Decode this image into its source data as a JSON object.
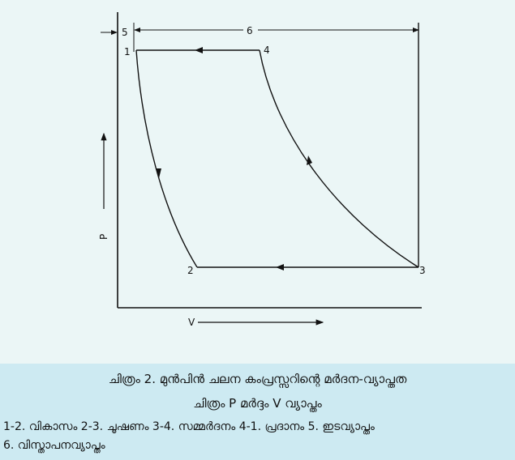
{
  "diagram": {
    "points": {
      "p1": "1",
      "p2": "2",
      "p3": "3",
      "p4": "4",
      "d5": "5",
      "d6": "6"
    },
    "axis": {
      "pressure": "P",
      "volume": "V"
    },
    "colors": {
      "line": "#111111",
      "diagram_bg": "#ebf6f6",
      "caption_bg": "#cdeaf2"
    }
  },
  "caption": {
    "title": "ചിത്രം 2.   മുൻപിൻ ചലന കംപ്രസ്സറിന്റെ മർദന-വ്യാപ്തത",
    "subtitle": "ചിത്രം P മർദ്ദം V വ്യാപ്തം",
    "legend_line1": "1-2. വികാസം 2-3. ചൂഷണം 3-4. സമ്മർദനം 4-1. പ്രദാനം 5. ഇടവ്യാപ്തം",
    "legend_line2": "6. വിസ്താപനവ്യാപ്തം"
  }
}
